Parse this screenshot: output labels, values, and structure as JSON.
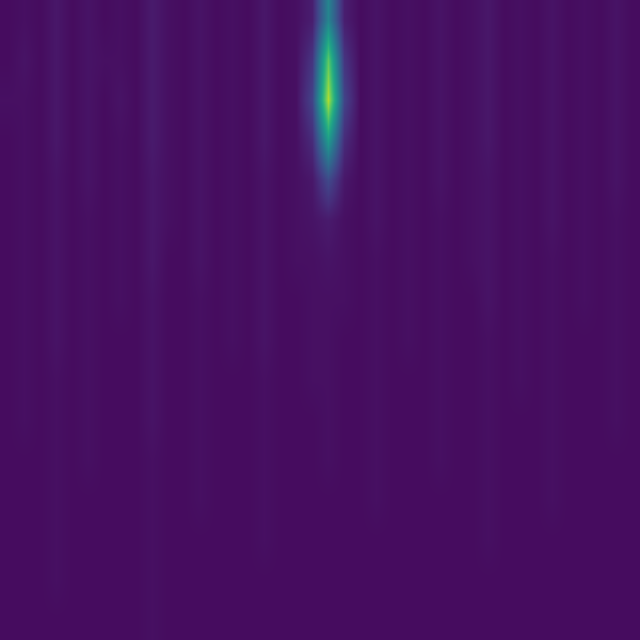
{
  "chart_data": {
    "type": "heatmap",
    "color": "viridis",
    "zlim": [
      0,
      1
    ],
    "xlim": [
      -0.5,
      39.5
    ],
    "ylim": [
      15.5,
      -0.5
    ],
    "tick_labels": false,
    "grid": false,
    "cells": [
      [
        0.03,
        0.04,
        0.03,
        0.06,
        0.03,
        0.05,
        0.03,
        0.04,
        0.03,
        0.07,
        0.04,
        0.03,
        0.05,
        0.03,
        0.04,
        0.03,
        0.06,
        0.03,
        0.04,
        0.08,
        0.45,
        0.08,
        0.03,
        0.05,
        0.03,
        0.04,
        0.03,
        0.05,
        0.03,
        0.04,
        0.06,
        0.03,
        0.04,
        0.03,
        0.05,
        0.03,
        0.04,
        0.03,
        0.05,
        0.03
      ],
      [
        0.03,
        0.05,
        0.03,
        0.06,
        0.03,
        0.05,
        0.04,
        0.04,
        0.03,
        0.07,
        0.04,
        0.03,
        0.05,
        0.03,
        0.04,
        0.03,
        0.06,
        0.03,
        0.04,
        0.15,
        0.75,
        0.15,
        0.03,
        0.05,
        0.03,
        0.04,
        0.03,
        0.05,
        0.03,
        0.04,
        0.06,
        0.03,
        0.04,
        0.03,
        0.05,
        0.03,
        0.04,
        0.03,
        0.05,
        0.03
      ],
      [
        0.04,
        0.04,
        0.03,
        0.06,
        0.03,
        0.05,
        0.03,
        0.05,
        0.03,
        0.07,
        0.04,
        0.03,
        0.05,
        0.03,
        0.04,
        0.03,
        0.06,
        0.03,
        0.04,
        0.2,
        0.88,
        0.2,
        0.03,
        0.05,
        0.03,
        0.04,
        0.03,
        0.05,
        0.03,
        0.04,
        0.06,
        0.03,
        0.04,
        0.03,
        0.05,
        0.03,
        0.04,
        0.03,
        0.05,
        0.03
      ],
      [
        0.03,
        0.04,
        0.03,
        0.06,
        0.03,
        0.05,
        0.03,
        0.04,
        0.03,
        0.07,
        0.04,
        0.03,
        0.05,
        0.03,
        0.04,
        0.03,
        0.06,
        0.03,
        0.04,
        0.12,
        0.55,
        0.12,
        0.03,
        0.05,
        0.03,
        0.04,
        0.03,
        0.05,
        0.03,
        0.04,
        0.06,
        0.03,
        0.04,
        0.03,
        0.05,
        0.03,
        0.04,
        0.03,
        0.05,
        0.03
      ],
      [
        0.03,
        0.04,
        0.03,
        0.05,
        0.03,
        0.05,
        0.03,
        0.04,
        0.03,
        0.06,
        0.04,
        0.03,
        0.05,
        0.03,
        0.04,
        0.03,
        0.05,
        0.03,
        0.04,
        0.06,
        0.22,
        0.06,
        0.03,
        0.05,
        0.03,
        0.04,
        0.03,
        0.05,
        0.03,
        0.04,
        0.05,
        0.03,
        0.04,
        0.03,
        0.05,
        0.03,
        0.04,
        0.03,
        0.05,
        0.03
      ],
      [
        0.03,
        0.04,
        0.03,
        0.05,
        0.03,
        0.04,
        0.03,
        0.04,
        0.03,
        0.06,
        0.04,
        0.03,
        0.05,
        0.03,
        0.04,
        0.03,
        0.05,
        0.03,
        0.04,
        0.05,
        0.07,
        0.04,
        0.03,
        0.05,
        0.03,
        0.04,
        0.03,
        0.04,
        0.03,
        0.04,
        0.05,
        0.03,
        0.04,
        0.03,
        0.05,
        0.03,
        0.04,
        0.03,
        0.04,
        0.03
      ],
      [
        0.03,
        0.04,
        0.03,
        0.05,
        0.03,
        0.04,
        0.03,
        0.04,
        0.03,
        0.06,
        0.03,
        0.03,
        0.05,
        0.03,
        0.04,
        0.03,
        0.05,
        0.03,
        0.04,
        0.04,
        0.05,
        0.04,
        0.03,
        0.04,
        0.03,
        0.04,
        0.03,
        0.04,
        0.03,
        0.04,
        0.05,
        0.03,
        0.04,
        0.03,
        0.04,
        0.03,
        0.04,
        0.03,
        0.04,
        0.03
      ],
      [
        0.03,
        0.04,
        0.03,
        0.05,
        0.03,
        0.04,
        0.03,
        0.04,
        0.03,
        0.05,
        0.03,
        0.03,
        0.04,
        0.03,
        0.04,
        0.03,
        0.05,
        0.03,
        0.03,
        0.04,
        0.04,
        0.04,
        0.03,
        0.04,
        0.03,
        0.04,
        0.03,
        0.04,
        0.03,
        0.03,
        0.05,
        0.03,
        0.04,
        0.03,
        0.04,
        0.03,
        0.04,
        0.03,
        0.04,
        0.03
      ],
      [
        0.03,
        0.04,
        0.03,
        0.05,
        0.03,
        0.04,
        0.03,
        0.03,
        0.03,
        0.05,
        0.03,
        0.03,
        0.04,
        0.03,
        0.04,
        0.03,
        0.05,
        0.03,
        0.03,
        0.04,
        0.04,
        0.03,
        0.03,
        0.04,
        0.03,
        0.04,
        0.03,
        0.04,
        0.03,
        0.03,
        0.04,
        0.03,
        0.04,
        0.03,
        0.04,
        0.03,
        0.03,
        0.03,
        0.04,
        0.03
      ],
      [
        0.03,
        0.04,
        0.03,
        0.04,
        0.03,
        0.04,
        0.03,
        0.03,
        0.03,
        0.05,
        0.03,
        0.03,
        0.04,
        0.03,
        0.03,
        0.03,
        0.04,
        0.03,
        0.03,
        0.04,
        0.04,
        0.03,
        0.03,
        0.04,
        0.03,
        0.03,
        0.03,
        0.04,
        0.03,
        0.03,
        0.04,
        0.03,
        0.04,
        0.03,
        0.04,
        0.03,
        0.03,
        0.03,
        0.04,
        0.03
      ],
      [
        0.03,
        0.04,
        0.03,
        0.04,
        0.03,
        0.04,
        0.03,
        0.03,
        0.03,
        0.05,
        0.03,
        0.03,
        0.04,
        0.03,
        0.03,
        0.03,
        0.04,
        0.03,
        0.03,
        0.03,
        0.04,
        0.03,
        0.03,
        0.04,
        0.03,
        0.03,
        0.03,
        0.04,
        0.03,
        0.03,
        0.04,
        0.03,
        0.03,
        0.03,
        0.04,
        0.03,
        0.03,
        0.03,
        0.04,
        0.03
      ],
      [
        0.03,
        0.03,
        0.03,
        0.04,
        0.03,
        0.04,
        0.03,
        0.03,
        0.03,
        0.04,
        0.03,
        0.03,
        0.04,
        0.03,
        0.03,
        0.03,
        0.04,
        0.03,
        0.03,
        0.03,
        0.04,
        0.03,
        0.03,
        0.04,
        0.03,
        0.03,
        0.03,
        0.04,
        0.03,
        0.03,
        0.04,
        0.03,
        0.03,
        0.03,
        0.04,
        0.03,
        0.03,
        0.03,
        0.03,
        0.03
      ],
      [
        0.03,
        0.03,
        0.03,
        0.04,
        0.03,
        0.03,
        0.03,
        0.03,
        0.03,
        0.04,
        0.03,
        0.03,
        0.04,
        0.03,
        0.03,
        0.03,
        0.04,
        0.03,
        0.03,
        0.03,
        0.03,
        0.03,
        0.03,
        0.04,
        0.03,
        0.03,
        0.03,
        0.03,
        0.03,
        0.03,
        0.04,
        0.03,
        0.03,
        0.03,
        0.04,
        0.03,
        0.03,
        0.03,
        0.03,
        0.03
      ],
      [
        0.03,
        0.03,
        0.03,
        0.04,
        0.03,
        0.03,
        0.03,
        0.03,
        0.03,
        0.04,
        0.03,
        0.03,
        0.03,
        0.03,
        0.03,
        0.03,
        0.04,
        0.03,
        0.03,
        0.03,
        0.03,
        0.03,
        0.03,
        0.03,
        0.03,
        0.03,
        0.03,
        0.03,
        0.03,
        0.03,
        0.04,
        0.03,
        0.03,
        0.03,
        0.03,
        0.03,
        0.03,
        0.03,
        0.03,
        0.03
      ],
      [
        0.03,
        0.03,
        0.03,
        0.04,
        0.03,
        0.03,
        0.03,
        0.03,
        0.03,
        0.04,
        0.03,
        0.03,
        0.03,
        0.03,
        0.03,
        0.03,
        0.03,
        0.03,
        0.03,
        0.03,
        0.03,
        0.03,
        0.03,
        0.03,
        0.03,
        0.03,
        0.03,
        0.03,
        0.03,
        0.03,
        0.03,
        0.03,
        0.03,
        0.03,
        0.03,
        0.03,
        0.03,
        0.03,
        0.03,
        0.03
      ],
      [
        0.03,
        0.03,
        0.03,
        0.03,
        0.03,
        0.03,
        0.03,
        0.03,
        0.03,
        0.04,
        0.03,
        0.03,
        0.03,
        0.03,
        0.03,
        0.03,
        0.03,
        0.03,
        0.03,
        0.03,
        0.03,
        0.03,
        0.03,
        0.03,
        0.03,
        0.03,
        0.03,
        0.03,
        0.03,
        0.03,
        0.03,
        0.03,
        0.03,
        0.03,
        0.03,
        0.03,
        0.03,
        0.03,
        0.03,
        0.03
      ]
    ]
  }
}
